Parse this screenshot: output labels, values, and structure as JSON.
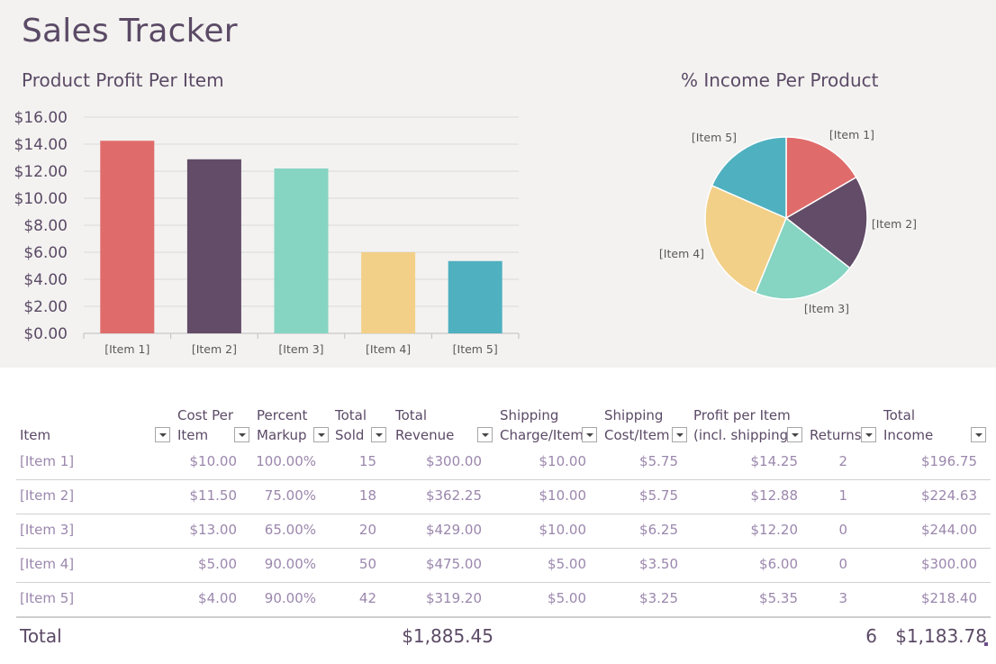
{
  "app": {
    "title": "Sales Tracker"
  },
  "colors": {
    "item1": "#e06b6b",
    "item2": "#624c67",
    "item3": "#86d4c2",
    "item4": "#f2d088",
    "item5": "#4fb0c0",
    "text": "#5b4a66",
    "muted": "#9b87ad"
  },
  "chart_data": [
    {
      "type": "bar",
      "title": "Product Profit Per Item",
      "categories": [
        "[Item 1]",
        "[Item 2]",
        "[Item 3]",
        "[Item 4]",
        "[Item 5]"
      ],
      "values": [
        14.25,
        12.88,
        12.2,
        6.0,
        5.35
      ],
      "ylim": [
        0,
        16
      ],
      "yticks": [
        "$0.00",
        "$2.00",
        "$4.00",
        "$6.00",
        "$8.00",
        "$10.00",
        "$12.00",
        "$14.00",
        "$16.00"
      ],
      "grid": true
    },
    {
      "type": "pie",
      "title": "% Income Per Product",
      "categories": [
        "[Item 1]",
        "[Item 2]",
        "[Item 3]",
        "[Item 4]",
        "[Item 5]"
      ],
      "values": [
        196.75,
        224.63,
        244.0,
        300.0,
        218.4
      ]
    }
  ],
  "table": {
    "headers": [
      {
        "line1": "",
        "line2": "Item"
      },
      {
        "line1": "Cost Per",
        "line2": "Item"
      },
      {
        "line1": "Percent",
        "line2": "Markup"
      },
      {
        "line1": "Total",
        "line2": "Sold"
      },
      {
        "line1": "Total",
        "line2": "Revenue"
      },
      {
        "line1": "Shipping",
        "line2": "Charge/Item"
      },
      {
        "line1": "Shipping",
        "line2": "Cost/Item"
      },
      {
        "line1": "Profit per Item",
        "line2": "(incl. shipping)"
      },
      {
        "line1": "",
        "line2": "Returns"
      },
      {
        "line1": "Total",
        "line2": "Income"
      }
    ],
    "rows": [
      [
        "[Item 1]",
        "$10.00",
        "100.00%",
        "15",
        "$300.00",
        "$10.00",
        "$5.75",
        "$14.25",
        "2",
        "$196.75"
      ],
      [
        "[Item 2]",
        "$11.50",
        "75.00%",
        "18",
        "$362.25",
        "$10.00",
        "$5.75",
        "$12.88",
        "1",
        "$224.63"
      ],
      [
        "[Item 3]",
        "$13.00",
        "65.00%",
        "20",
        "$429.00",
        "$10.00",
        "$6.25",
        "$12.20",
        "0",
        "$244.00"
      ],
      [
        "[Item 4]",
        "$5.00",
        "90.00%",
        "50",
        "$475.00",
        "$5.00",
        "$3.50",
        "$6.00",
        "0",
        "$300.00"
      ],
      [
        "[Item 5]",
        "$4.00",
        "90.00%",
        "42",
        "$319.20",
        "$5.00",
        "$3.25",
        "$5.35",
        "3",
        "$218.40"
      ]
    ],
    "total": {
      "label": "Total",
      "revenue": "$1,885.45",
      "returns": "6",
      "income": "$1,183.78"
    }
  }
}
